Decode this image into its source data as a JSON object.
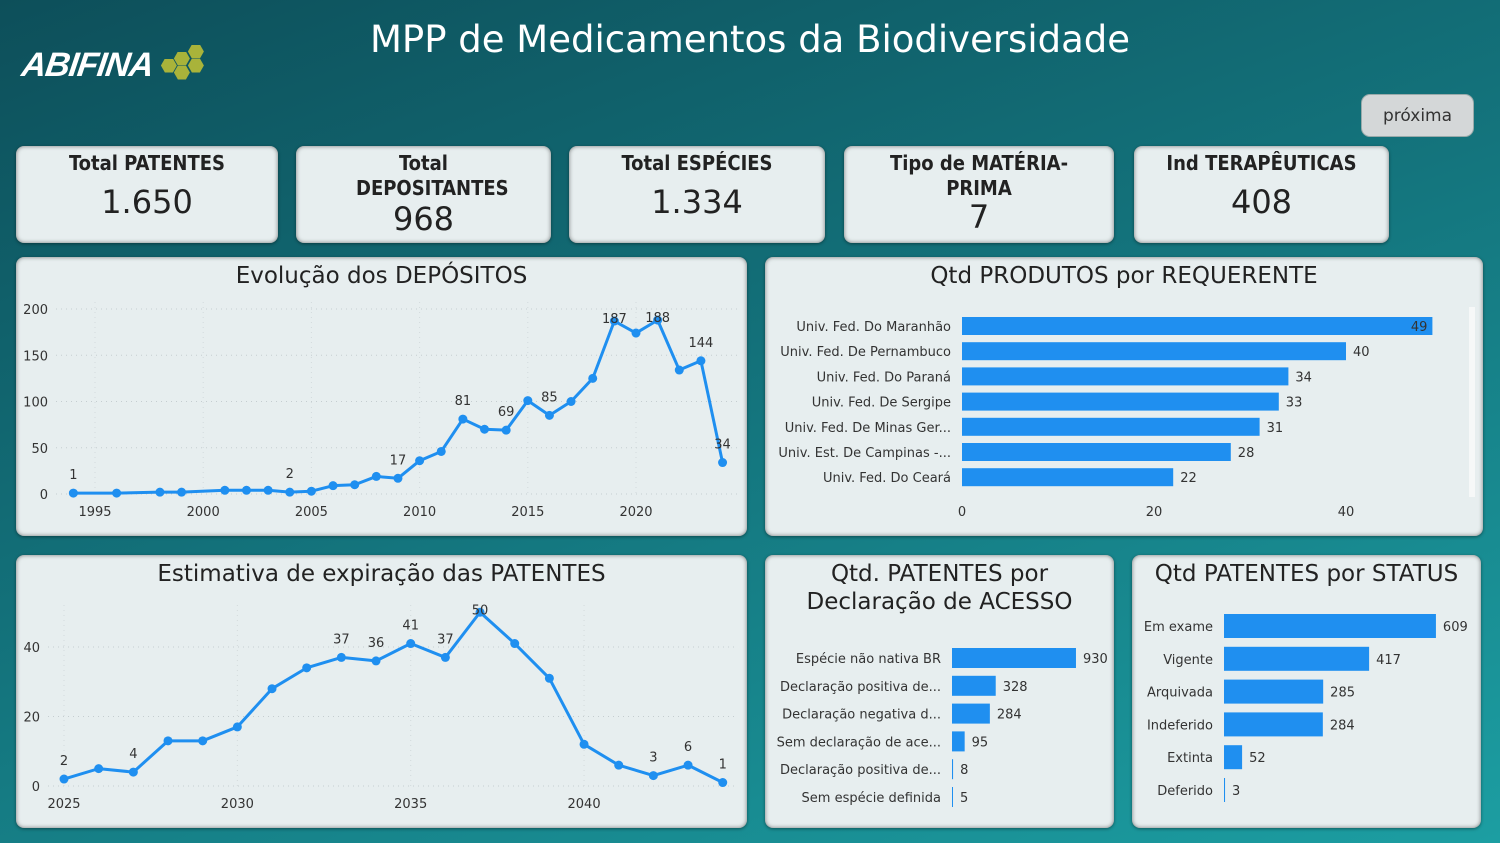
{
  "header": {
    "title": "MPP de Medicamentos da Biodiversidade",
    "logo_text": "ABIFINA",
    "next_button": "próxima"
  },
  "kpis": [
    {
      "label": "Total PATENTES",
      "value": "1.650"
    },
    {
      "label": "Total DEPOSITANTES",
      "value": "968"
    },
    {
      "label": "Total ESPÉCIES",
      "value": "1.334"
    },
    {
      "label": "Tipo de MATÉRIA-PRIMA",
      "value": "7"
    },
    {
      "label": "Ind TERAPÊUTICAS",
      "value": "408"
    }
  ],
  "colors": {
    "series": "#1f8ff0",
    "text": "#333333"
  },
  "chart_data": [
    {
      "type": "line",
      "title": "Evolução dos DEPÓSITOS",
      "xlabel": "",
      "ylabel": "",
      "grid": true,
      "x": [
        1994,
        1996,
        1998,
        1999,
        2001,
        2002,
        2003,
        2004,
        2005,
        2006,
        2007,
        2008,
        2009,
        2010,
        2011,
        2012,
        2013,
        2014,
        2015,
        2016,
        2017,
        2018,
        2019,
        2020,
        2021,
        2022,
        2023,
        2024
      ],
      "values": [
        1,
        1,
        2,
        2,
        4,
        4,
        4,
        2,
        3,
        9,
        10,
        19,
        17,
        36,
        46,
        81,
        70,
        69,
        101,
        85,
        100,
        125,
        187,
        174,
        188,
        134,
        144,
        34
      ],
      "labeled_x": [
        1994,
        2004,
        2009,
        2012,
        2014,
        2016,
        2019,
        2021,
        2023,
        2024
      ],
      "xticks": [
        "1995",
        "2000",
        "2005",
        "2010",
        "2015",
        "2020"
      ],
      "yticks": [
        "0",
        "50",
        "100",
        "150",
        "200"
      ],
      "ylim": [
        0,
        200
      ]
    },
    {
      "type": "line",
      "title": "Estimativa de expiração das PATENTES",
      "xlabel": "",
      "ylabel": "",
      "grid": true,
      "x": [
        2025,
        2026,
        2027,
        2028,
        2029,
        2030,
        2031,
        2032,
        2033,
        2034,
        2035,
        2036,
        2037,
        2038,
        2039,
        2040,
        2041,
        2042,
        2043,
        2044
      ],
      "values": [
        2,
        5,
        4,
        13,
        13,
        17,
        28,
        34,
        37,
        36,
        41,
        37,
        50,
        41,
        31,
        12,
        6,
        3,
        6,
        1
      ],
      "labeled_x": [
        2025,
        2027,
        2033,
        2034,
        2035,
        2036,
        2037,
        2042,
        2043,
        2044
      ],
      "xticks": [
        "2025",
        "2030",
        "2035",
        "2040"
      ],
      "yticks": [
        "0",
        "20",
        "40"
      ],
      "ylim": [
        0,
        50
      ]
    },
    {
      "type": "bar",
      "orientation": "horizontal",
      "title": "Qtd PRODUTOS por REQUERENTE",
      "categories": [
        "Univ. Fed. Do Maranhão",
        "Univ. Fed. De Pernambuco",
        "Univ. Fed. Do Paraná",
        "Univ. Fed. De Sergipe",
        "Univ. Fed. De Minas Ger...",
        "Univ. Est. De Campinas -...",
        "Univ. Fed. Do Ceará"
      ],
      "values": [
        49,
        40,
        34,
        33,
        31,
        28,
        22
      ],
      "xticks": [
        "0",
        "20",
        "40"
      ],
      "xlim": [
        0,
        50
      ]
    },
    {
      "type": "bar",
      "orientation": "horizontal",
      "title": "Qtd. PATENTES por Declaração de ACESSO",
      "categories": [
        "Espécie não nativa BR",
        "Declaração positiva de...",
        "Declaração negativa d...",
        "Sem declaração de ace...",
        "Declaração positiva de...",
        "Sem espécie definida"
      ],
      "values": [
        930,
        328,
        284,
        95,
        8,
        5
      ]
    },
    {
      "type": "bar",
      "orientation": "horizontal",
      "title": "Qtd PATENTES por STATUS",
      "categories": [
        "Em exame",
        "Vigente",
        "Arquivada",
        "Indeferido",
        "Extinta",
        "Deferido"
      ],
      "values": [
        609,
        417,
        285,
        284,
        52,
        3
      ]
    }
  ]
}
